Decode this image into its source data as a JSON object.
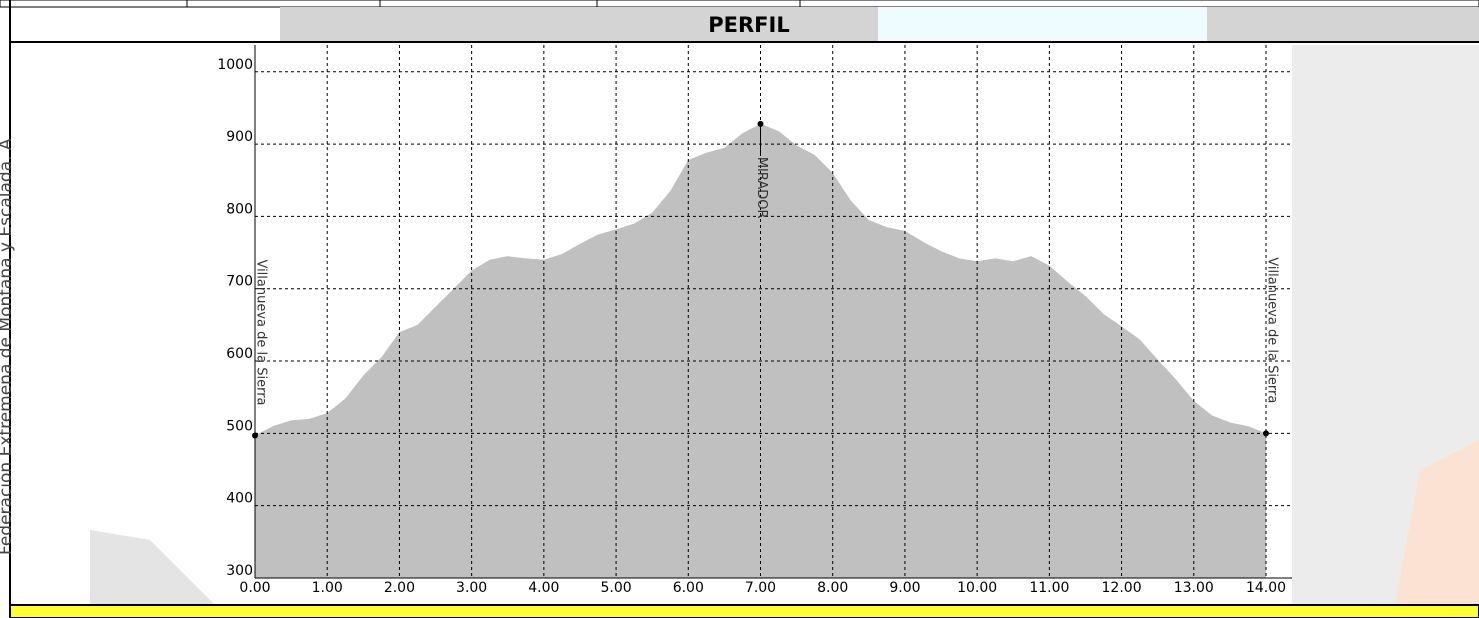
{
  "side_text": "Federación Extremeña de Montaña y Escalada. A",
  "header": "PERFIL",
  "chart_data": {
    "type": "area",
    "x": [
      0,
      0.25,
      0.5,
      0.75,
      1.0,
      1.25,
      1.5,
      1.75,
      2.0,
      2.25,
      2.5,
      2.75,
      3.0,
      3.25,
      3.5,
      3.75,
      4.0,
      4.25,
      4.5,
      4.75,
      5.0,
      5.25,
      5.5,
      5.75,
      6.0,
      6.25,
      6.5,
      6.75,
      7.0,
      7.25,
      7.5,
      7.75,
      8.0,
      8.25,
      8.5,
      8.75,
      9.0,
      9.25,
      9.5,
      9.75,
      10.0,
      10.25,
      10.5,
      10.75,
      11.0,
      11.25,
      11.5,
      11.75,
      12.0,
      12.25,
      12.5,
      12.75,
      13.0,
      13.25,
      13.5,
      13.75,
      14.0
    ],
    "values": [
      497,
      510,
      518,
      520,
      528,
      548,
      580,
      605,
      640,
      650,
      675,
      700,
      725,
      740,
      745,
      742,
      740,
      748,
      762,
      775,
      782,
      790,
      805,
      835,
      878,
      888,
      895,
      915,
      928,
      918,
      898,
      885,
      860,
      822,
      795,
      785,
      780,
      765,
      752,
      742,
      738,
      742,
      738,
      745,
      732,
      710,
      690,
      665,
      648,
      630,
      602,
      575,
      545,
      525,
      515,
      510,
      500
    ],
    "color": "#c0c0c0",
    "xlim": [
      0,
      14.36
    ],
    "ylim": [
      300,
      1037
    ],
    "xticks": [
      {
        "value": 0,
        "label": "0.00"
      },
      {
        "value": 1,
        "label": "1.00"
      },
      {
        "value": 2,
        "label": "2.00"
      },
      {
        "value": 3,
        "label": "3.00"
      },
      {
        "value": 4,
        "label": "4.00"
      },
      {
        "value": 5,
        "label": "5.00"
      },
      {
        "value": 6,
        "label": "6.00"
      },
      {
        "value": 7,
        "label": "7.00"
      },
      {
        "value": 8,
        "label": "8.00"
      },
      {
        "value": 9,
        "label": "9.00"
      },
      {
        "value": 10,
        "label": "10.00"
      },
      {
        "value": 11,
        "label": "11.00"
      },
      {
        "value": 12,
        "label": "12.00"
      },
      {
        "value": 13,
        "label": "13.00"
      },
      {
        "value": 14,
        "label": "14.00"
      }
    ],
    "yticks": [
      300,
      400,
      500,
      600,
      700,
      800,
      900,
      1000
    ],
    "grid": true,
    "annotations": [
      {
        "x": 0,
        "y": 497,
        "text": "Villanueva de la Sierra"
      },
      {
        "x": 7.0,
        "y": 928,
        "text": "MIRADOR"
      },
      {
        "x": 14.0,
        "y": 500,
        "text": "Villanueva de la Sierra"
      }
    ]
  }
}
